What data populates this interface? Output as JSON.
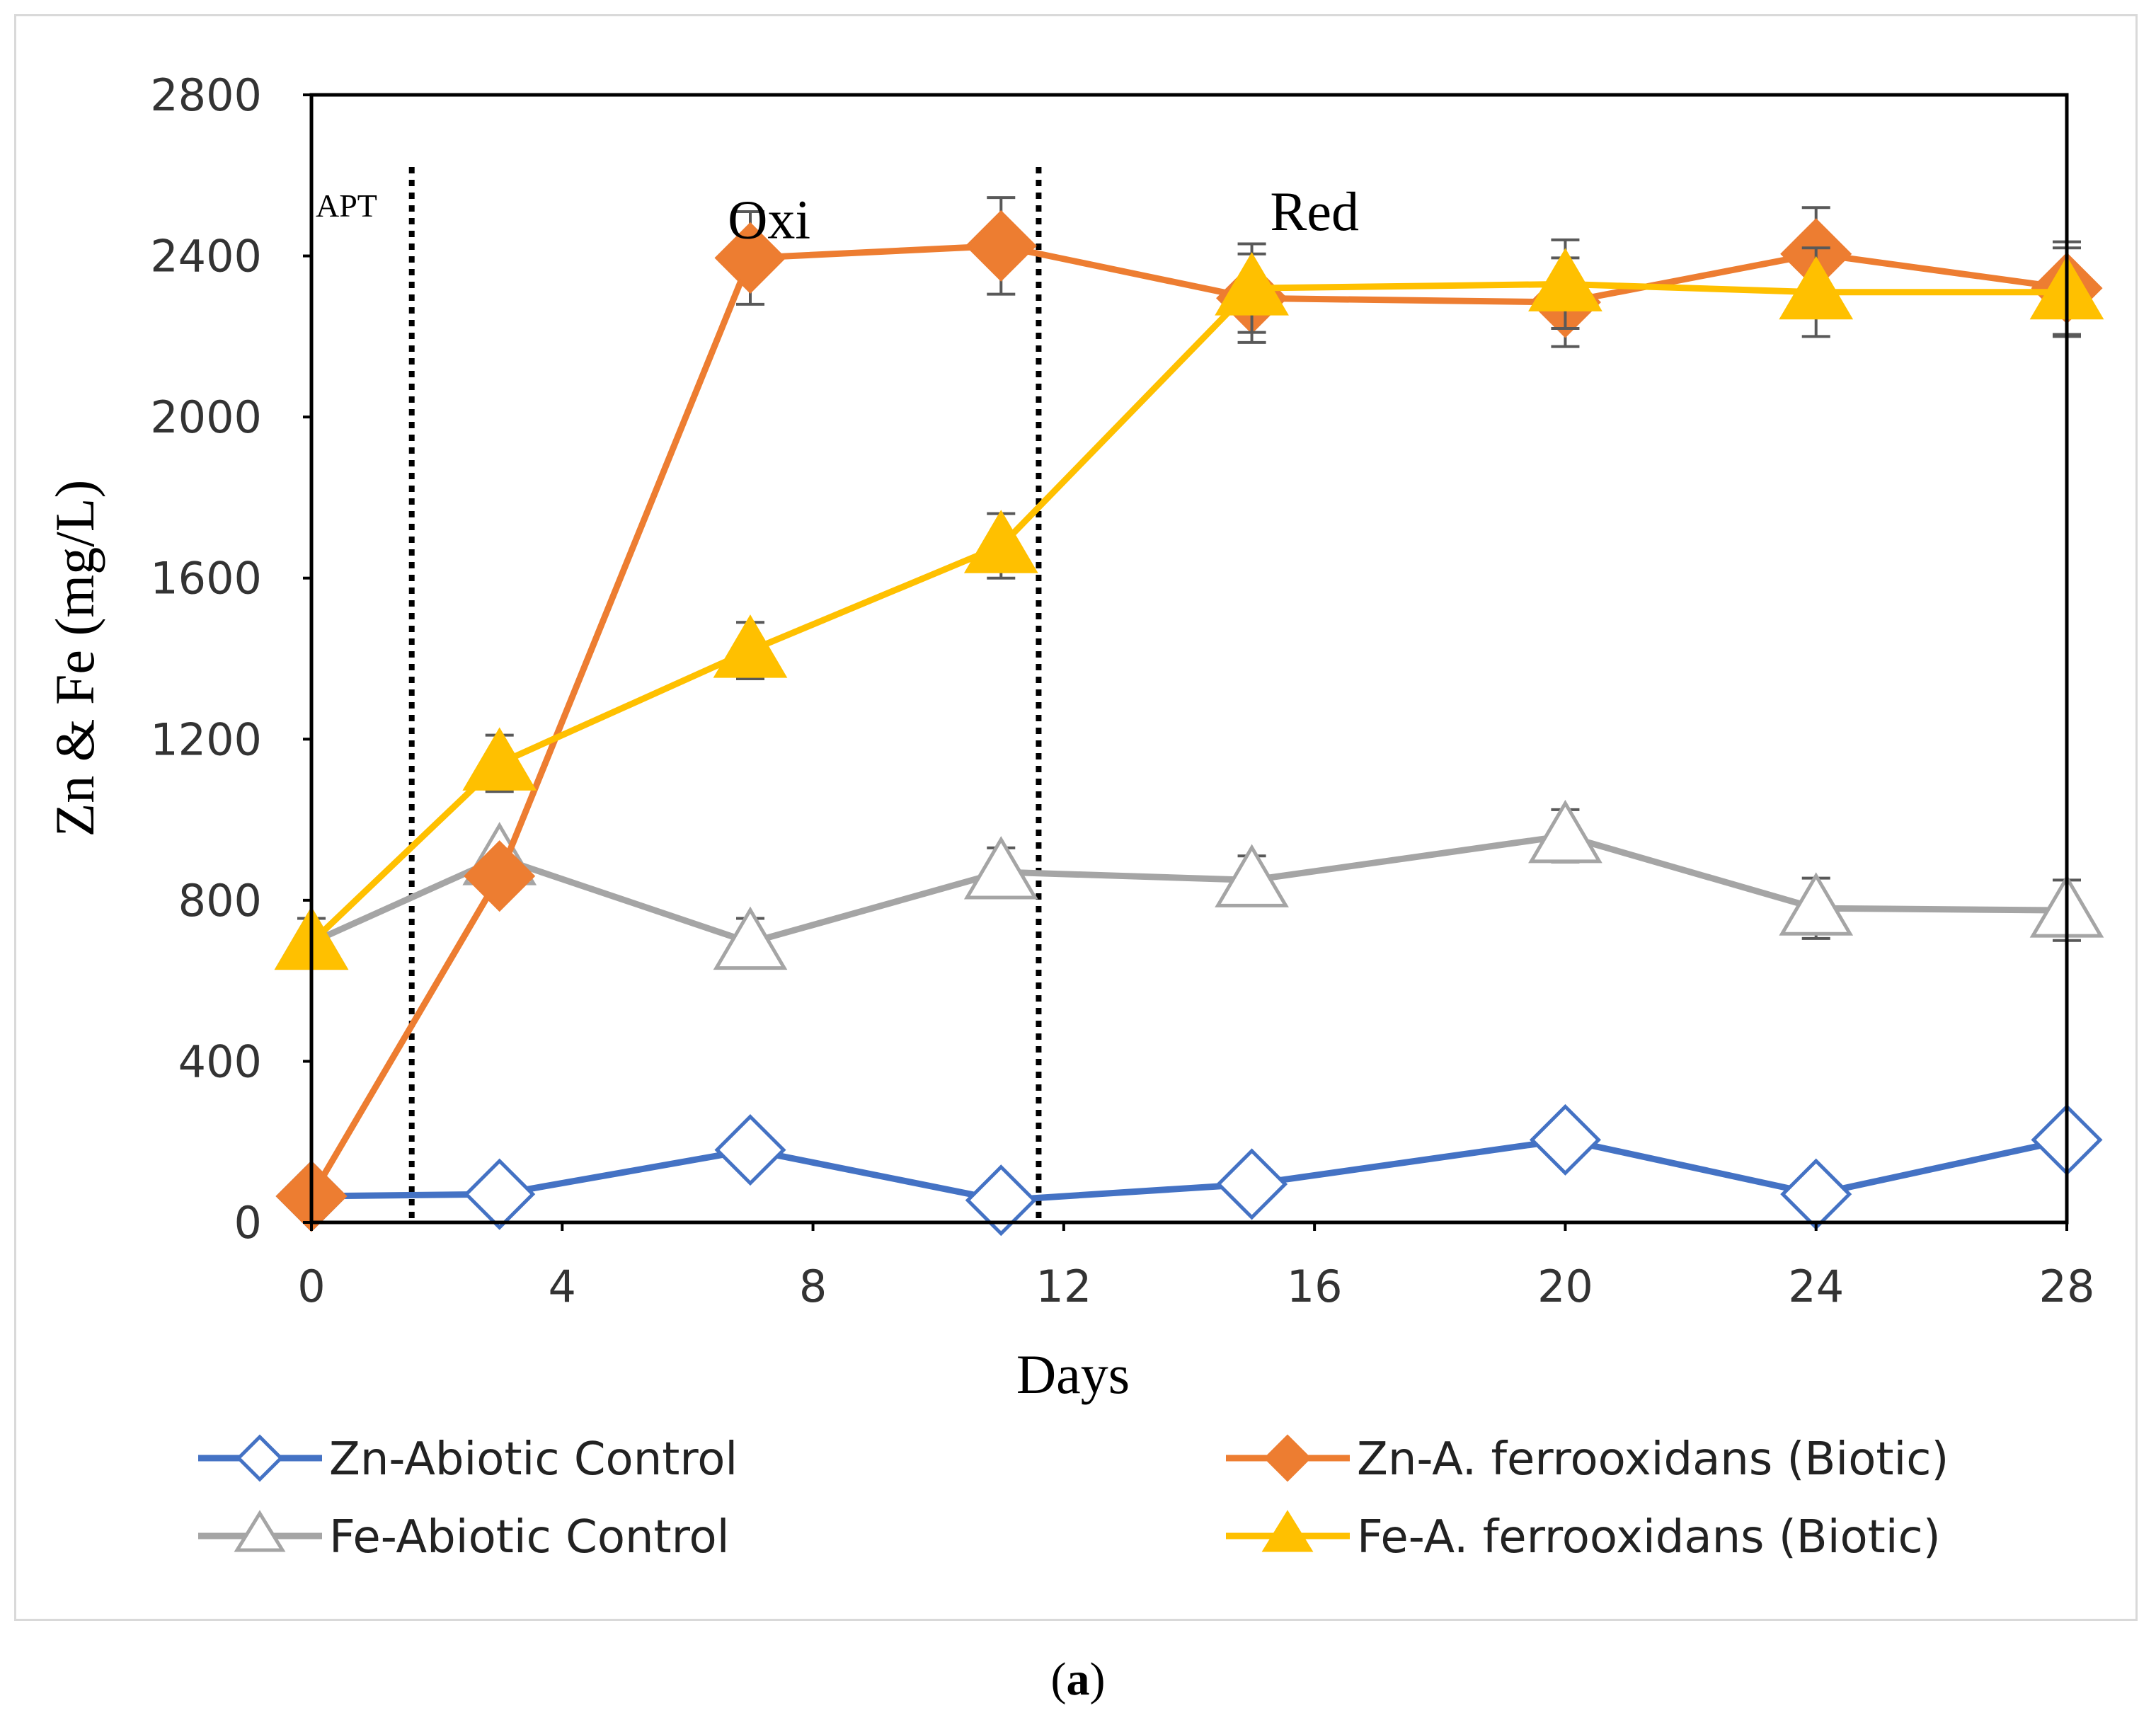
{
  "caption": {
    "open": "(",
    "letter": "a",
    "close": ")"
  },
  "chart_data": {
    "type": "line",
    "title": "",
    "xlabel": "Days",
    "ylabel": "Zn & Fe (mg/L)",
    "xlim": [
      0,
      28
    ],
    "ylim": [
      0,
      2800
    ],
    "xticks": [
      0,
      4,
      8,
      12,
      16,
      20,
      24,
      28
    ],
    "yticks": [
      0,
      400,
      800,
      1200,
      1600,
      2000,
      2400,
      2800
    ],
    "grid": false,
    "legend_position": "bottom",
    "x": [
      0,
      3,
      7,
      11,
      15,
      20,
      24,
      28
    ],
    "phase_lines": [
      {
        "x": 1.6,
        "label": "APT"
      },
      {
        "x": 11.6,
        "label": ""
      }
    ],
    "phase_labels": [
      {
        "text": "Oxi",
        "x": 7.3,
        "y": 2490
      },
      {
        "text": "Red",
        "x": 16.0,
        "y": 2510
      }
    ],
    "series": [
      {
        "name": "Zn-Abiotic Control",
        "color": "#4472C4",
        "marker": "diamond-open",
        "values": [
          65,
          70,
          180,
          55,
          95,
          205,
          70,
          205
        ],
        "errors": [
          0,
          0,
          0,
          0,
          0,
          0,
          0,
          0
        ]
      },
      {
        "name": "Zn-A. ferrooxidans (Biotic)",
        "color": "#ED7D31",
        "marker": "diamond-filled",
        "values": [
          65,
          860,
          2395,
          2425,
          2295,
          2285,
          2405,
          2320
        ],
        "errors": [
          0,
          0,
          115,
          120,
          110,
          110,
          115,
          115
        ]
      },
      {
        "name": "Fe-Abiotic Control",
        "color": "#A5A5A5",
        "marker": "triangle-open",
        "values": [
          695,
          905,
          695,
          870,
          850,
          960,
          780,
          775
        ],
        "errors": [
          0,
          0,
          60,
          60,
          60,
          65,
          75,
          75
        ]
      },
      {
        "name": "Fe-A. ferrooxidans (Biotic)",
        "color": "#FFC000",
        "marker": "triangle-filled",
        "values": [
          695,
          1140,
          1420,
          1680,
          2320,
          2330,
          2310,
          2310
        ],
        "errors": [
          60,
          70,
          70,
          80,
          110,
          110,
          110,
          110
        ]
      }
    ]
  }
}
